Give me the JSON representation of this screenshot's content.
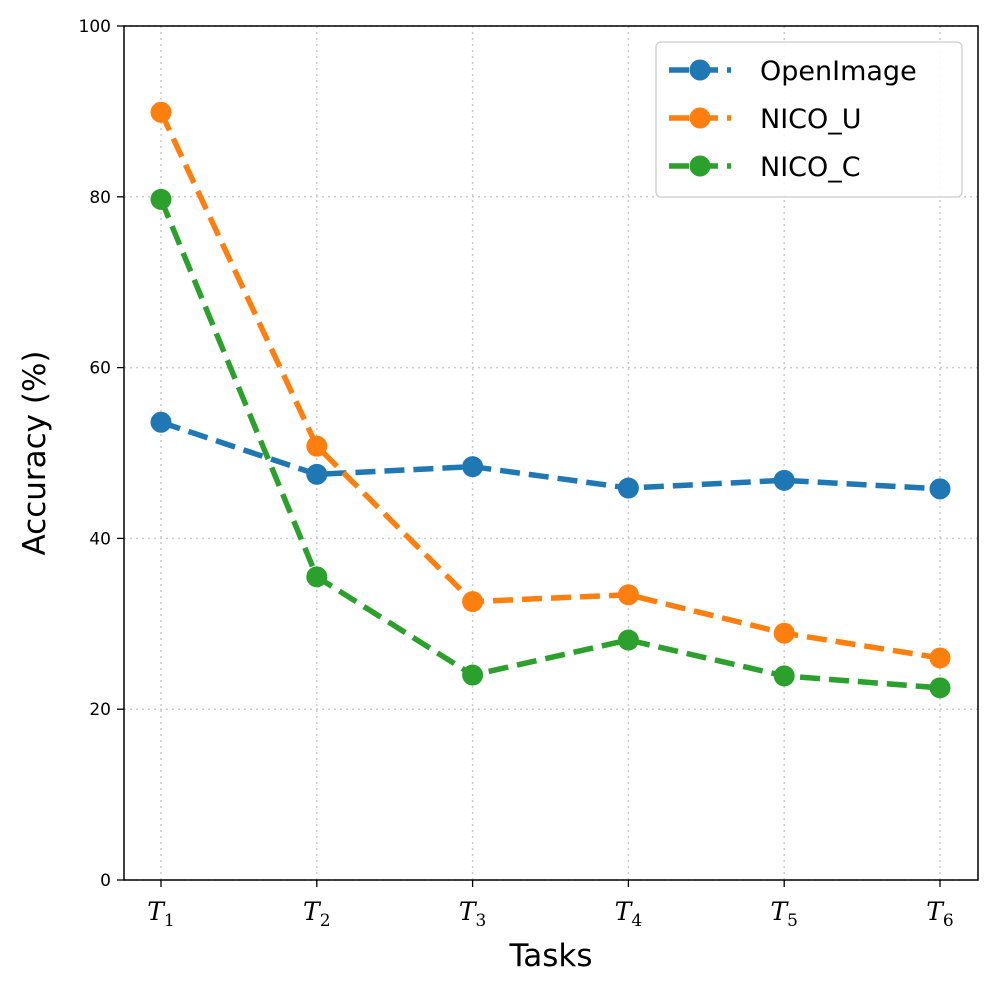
{
  "chart_data": {
    "type": "line",
    "categories": [
      "T1",
      "T2",
      "T3",
      "T4",
      "T5",
      "T6"
    ],
    "tick_labels": [
      {
        "base": "T",
        "sub": "1"
      },
      {
        "base": "T",
        "sub": "2"
      },
      {
        "base": "T",
        "sub": "3"
      },
      {
        "base": "T",
        "sub": "4"
      },
      {
        "base": "T",
        "sub": "5"
      },
      {
        "base": "T",
        "sub": "6"
      }
    ],
    "series": [
      {
        "name": "OpenImage",
        "color": "#1f77b4",
        "values": [
          53.6,
          47.5,
          48.4,
          45.9,
          46.8,
          45.8
        ]
      },
      {
        "name": "NICO_U",
        "color": "#ff7f0e",
        "values": [
          89.9,
          50.8,
          32.6,
          33.4,
          28.9,
          26.0
        ]
      },
      {
        "name": "NICO_C",
        "color": "#2ca02c",
        "values": [
          79.7,
          35.5,
          24.0,
          28.1,
          23.9,
          22.5
        ]
      }
    ],
    "xlabel": "Tasks",
    "ylabel": "Accuracy (%)",
    "ylim": [
      0,
      100
    ],
    "yticks": [
      0,
      20,
      40,
      60,
      80,
      100
    ],
    "grid": true,
    "line_style": "dashed",
    "marker": "circle",
    "legend_position": "top-right"
  }
}
